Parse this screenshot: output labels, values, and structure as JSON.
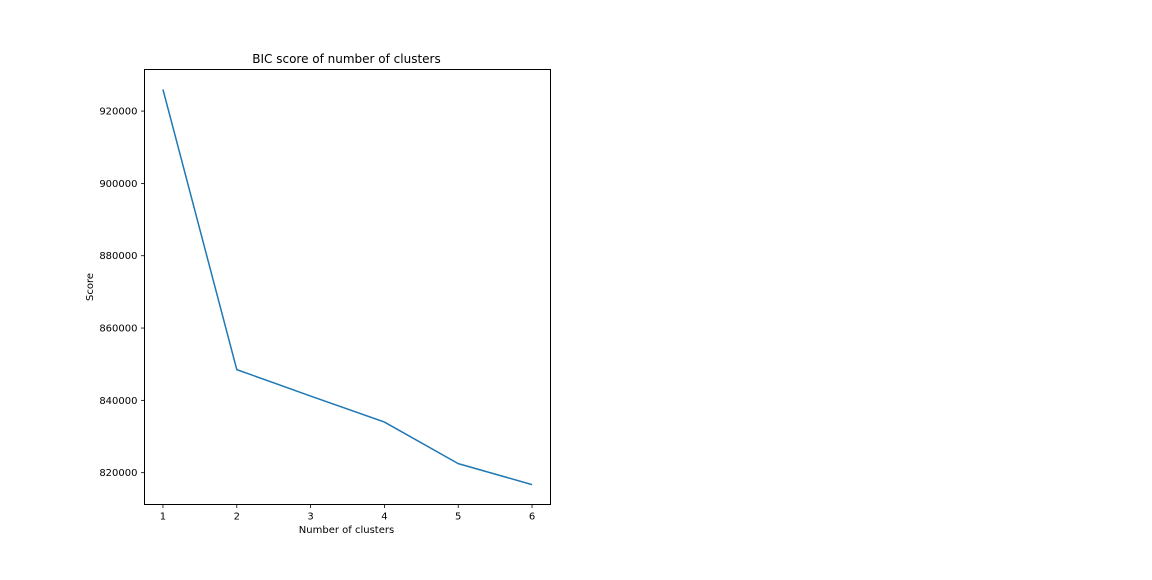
{
  "chart_data": {
    "type": "line",
    "title": "BIC score of number of clusters",
    "xlabel": "Number of clusters",
    "ylabel": "Score",
    "x": [
      1,
      2,
      3,
      4,
      5,
      6
    ],
    "series": [
      {
        "values": [
          926000,
          848500,
          841200,
          834000,
          822500,
          816700
        ],
        "color": "#1f77b4"
      }
    ],
    "xlim": [
      0.75,
      6.25
    ],
    "ylim": [
      811200,
      931500
    ],
    "xticks": [
      1,
      2,
      3,
      4,
      5,
      6
    ],
    "xtick_labels": [
      "1",
      "2",
      "3",
      "4",
      "5",
      "6"
    ],
    "yticks": [
      820000,
      840000,
      860000,
      880000,
      900000,
      920000
    ],
    "ytick_labels": [
      "820000",
      "840000",
      "860000",
      "880000",
      "900000",
      "920000"
    ],
    "grid": false,
    "legend": false
  }
}
